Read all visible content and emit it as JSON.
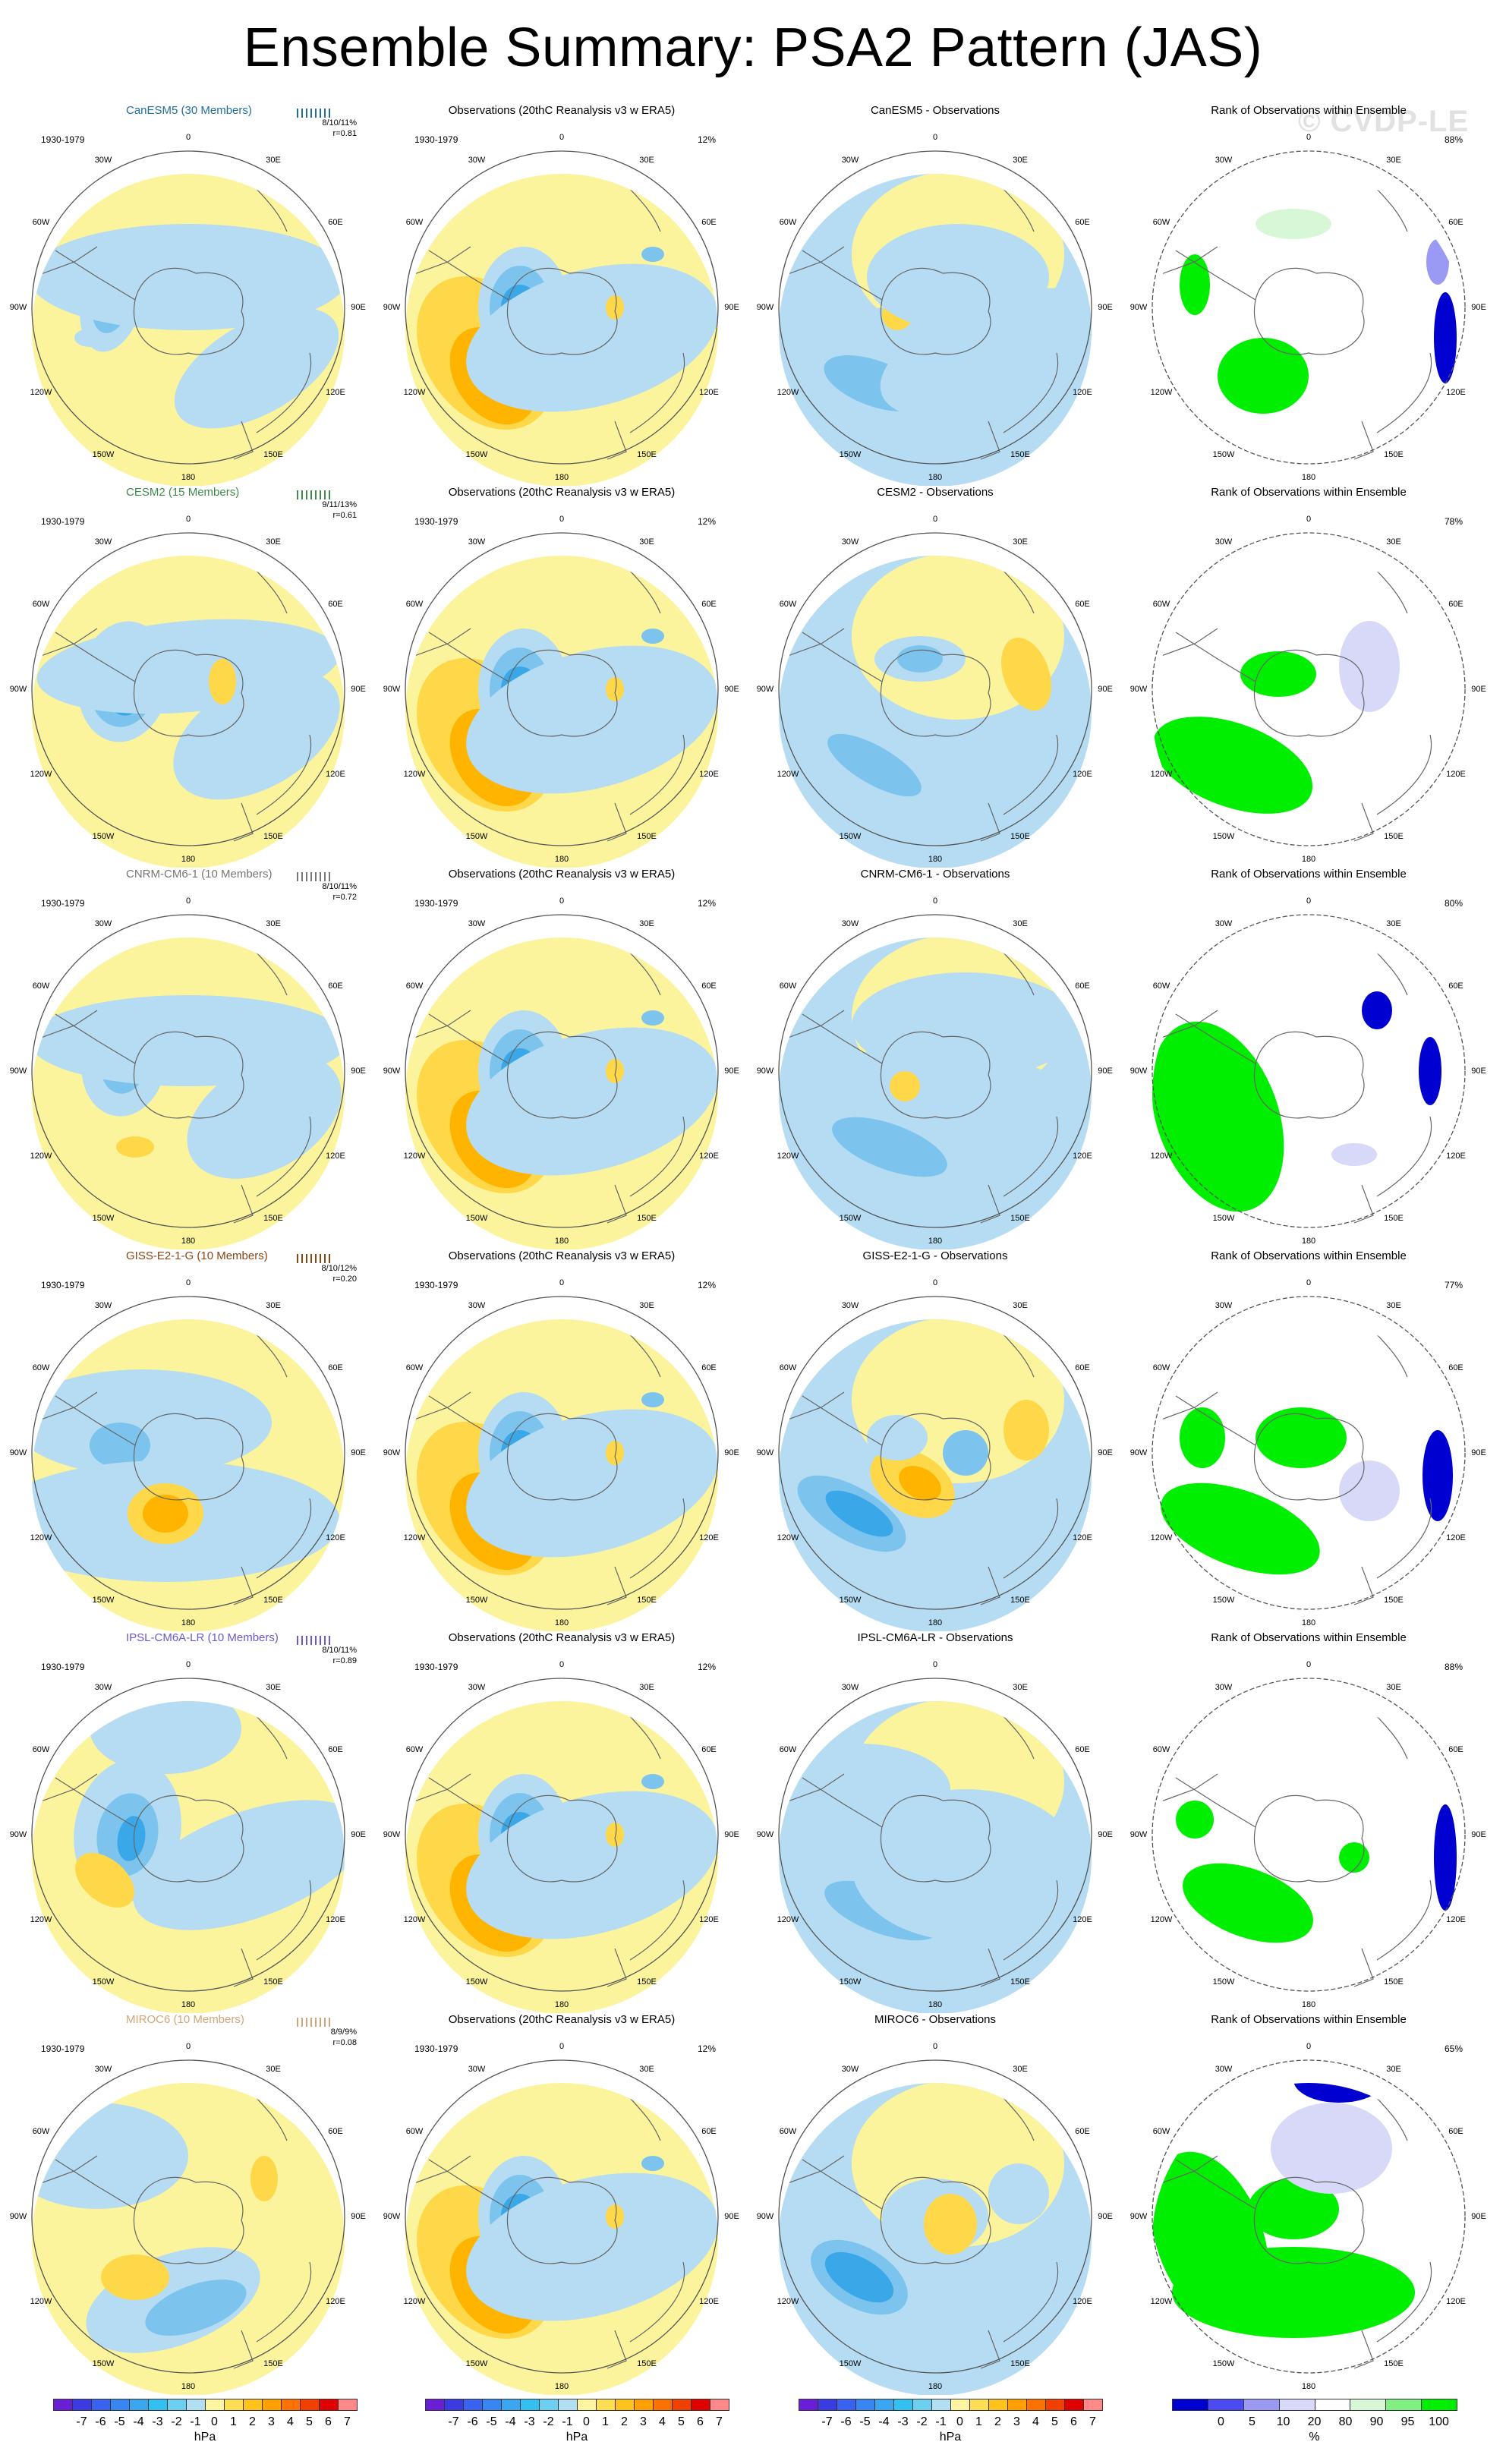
{
  "title": "Ensemble Summary: PSA2 Pattern (JAS)",
  "watermark": "© CVDP-LE",
  "chart_data": {
    "type": "heatmap",
    "projection": "south polar stereographic",
    "variable": "PSA2 Pattern (JAS)",
    "period": "1930-1979",
    "lon_labels": [
      "0",
      "30E",
      "60E",
      "90E",
      "120E",
      "150E",
      "180",
      "150W",
      "120W",
      "90W",
      "60W",
      "30W"
    ],
    "column_titles_template": {
      "observations": "Observations (20thC Reanalysis v3 w ERA5)",
      "rank": "Rank of Observations within Ensemble"
    },
    "rows": [
      {
        "model": "CanESM5",
        "members": "CanESM5 (30 Members)",
        "color": "#1f6e9c",
        "stat1": "8/10/11%",
        "stat2": "r=0.81",
        "obs_pct": "12%",
        "rank_pct": "88%",
        "diff_title": "CanESM5 - Observations"
      },
      {
        "model": "CESM2",
        "members": "CESM2 (15 Members)",
        "color": "#3f8a4d",
        "stat1": "9/11/13%",
        "stat2": "r=0.61",
        "obs_pct": "12%",
        "rank_pct": "78%",
        "diff_title": "CESM2 - Observations"
      },
      {
        "model": "CNRM-CM6-1",
        "members": "CNRM-CM6-1 (10 Members)",
        "color": "#777777",
        "stat1": "8/10/11%",
        "stat2": "r=0.72",
        "obs_pct": "12%",
        "rank_pct": "80%",
        "diff_title": "CNRM-CM6-1 - Observations"
      },
      {
        "model": "GISS-E2-1-G",
        "members": "GISS-E2-1-G (10 Members)",
        "color": "#8b4513",
        "stat1": "8/10/12%",
        "stat2": "r=0.20",
        "obs_pct": "12%",
        "rank_pct": "77%",
        "diff_title": "GISS-E2-1-G - Observations"
      },
      {
        "model": "IPSL-CM6A-LR",
        "members": "IPSL-CM6A-LR (10 Members)",
        "color": "#6a5acd",
        "stat1": "8/10/11%",
        "stat2": "r=0.89",
        "obs_pct": "12%",
        "rank_pct": "88%",
        "diff_title": "IPSL-CM6A-LR - Observations"
      },
      {
        "model": "MIROC6",
        "members": "MIROC6 (10 Members)",
        "color": "#d2a679",
        "stat1": "8/9/9%",
        "stat2": "r=0.08",
        "obs_pct": "12%",
        "rank_pct": "65%",
        "diff_title": "MIROC6 - Observations"
      }
    ],
    "colorbar_hpa": {
      "ticks": [
        "-7",
        "-6",
        "-5",
        "-4",
        "-3",
        "-2",
        "-1",
        "0",
        "1",
        "2",
        "3",
        "4",
        "5",
        "6",
        "7"
      ],
      "unit": "hPa",
      "colors": [
        "#6a1fd6",
        "#3a3ce0",
        "#3a62f0",
        "#3a86f0",
        "#3aa6f0",
        "#33bff0",
        "#6ccff0",
        "#b3dff2",
        "#fff5a0",
        "#ffde55",
        "#ffc21a",
        "#ff9f00",
        "#ff7000",
        "#f04000",
        "#e00000",
        "#ff8888"
      ]
    },
    "colorbar_rank": {
      "ticks": [
        "0",
        "5",
        "10",
        "20",
        "80",
        "90",
        "95",
        "100"
      ],
      "unit": "%",
      "colors": [
        "#0000d0",
        "#4a4aee",
        "#9a9af5",
        "#d8d8f8",
        "#ffffff",
        "#d6f8d6",
        "#80f080",
        "#00ee00"
      ]
    }
  }
}
